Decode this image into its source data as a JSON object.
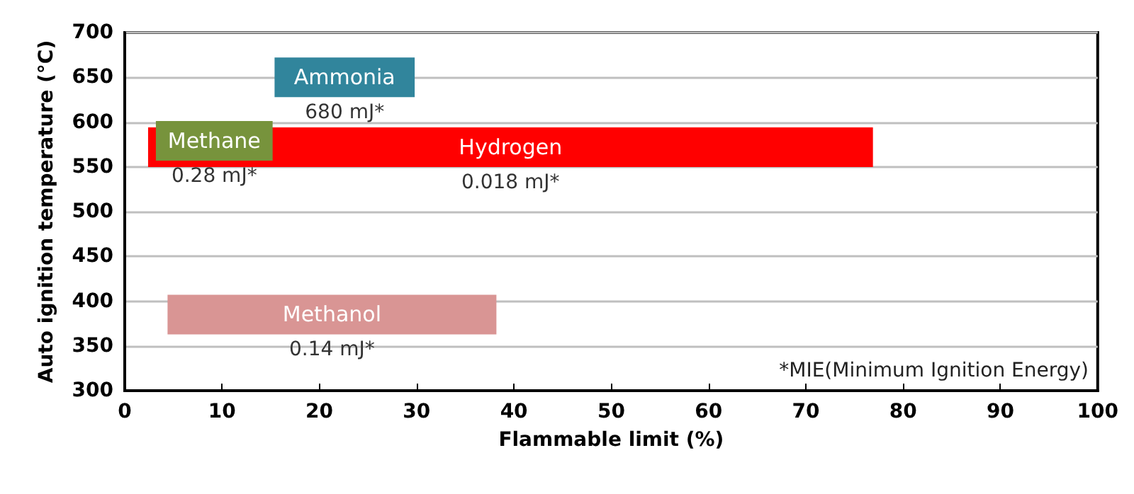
{
  "chart_data": {
    "type": "bar",
    "orientation": "horizontal",
    "xlabel": "Flammable limit (%)",
    "ylabel": "Auto ignition temperature (°C)",
    "xlim": [
      0,
      100
    ],
    "xticks": [
      0,
      10,
      20,
      30,
      40,
      50,
      60,
      70,
      80,
      90,
      100
    ],
    "ylim": [
      300,
      700
    ],
    "yticks": [
      300,
      350,
      400,
      450,
      500,
      550,
      600,
      650,
      700
    ],
    "grid": "y",
    "series": [
      {
        "name": "Ammonia",
        "color": "#31859c",
        "x": [
          650
        ],
        "base": [
          15.4
        ],
        "values": [
          14.4
        ]
      },
      {
        "name": "Hydrogen",
        "color": "#ff0000",
        "x": [
          572
        ],
        "base": [
          2.4
        ],
        "values": [
          74.5
        ]
      },
      {
        "name": "Methane",
        "color": "#77933c",
        "x": [
          579
        ],
        "base": [
          3.2
        ],
        "values": [
          12
        ]
      },
      {
        "name": "Methanol",
        "color": "#d99594",
        "x": [
          385
        ],
        "base": [
          4.4
        ],
        "values": [
          33.8
        ]
      }
    ],
    "annotations": [
      "680 mJ*",
      "0.018 mJ*",
      "0.28 mJ*",
      "0.14 mJ*",
      "*MIE(Minimum Ignition Energy)"
    ]
  }
}
